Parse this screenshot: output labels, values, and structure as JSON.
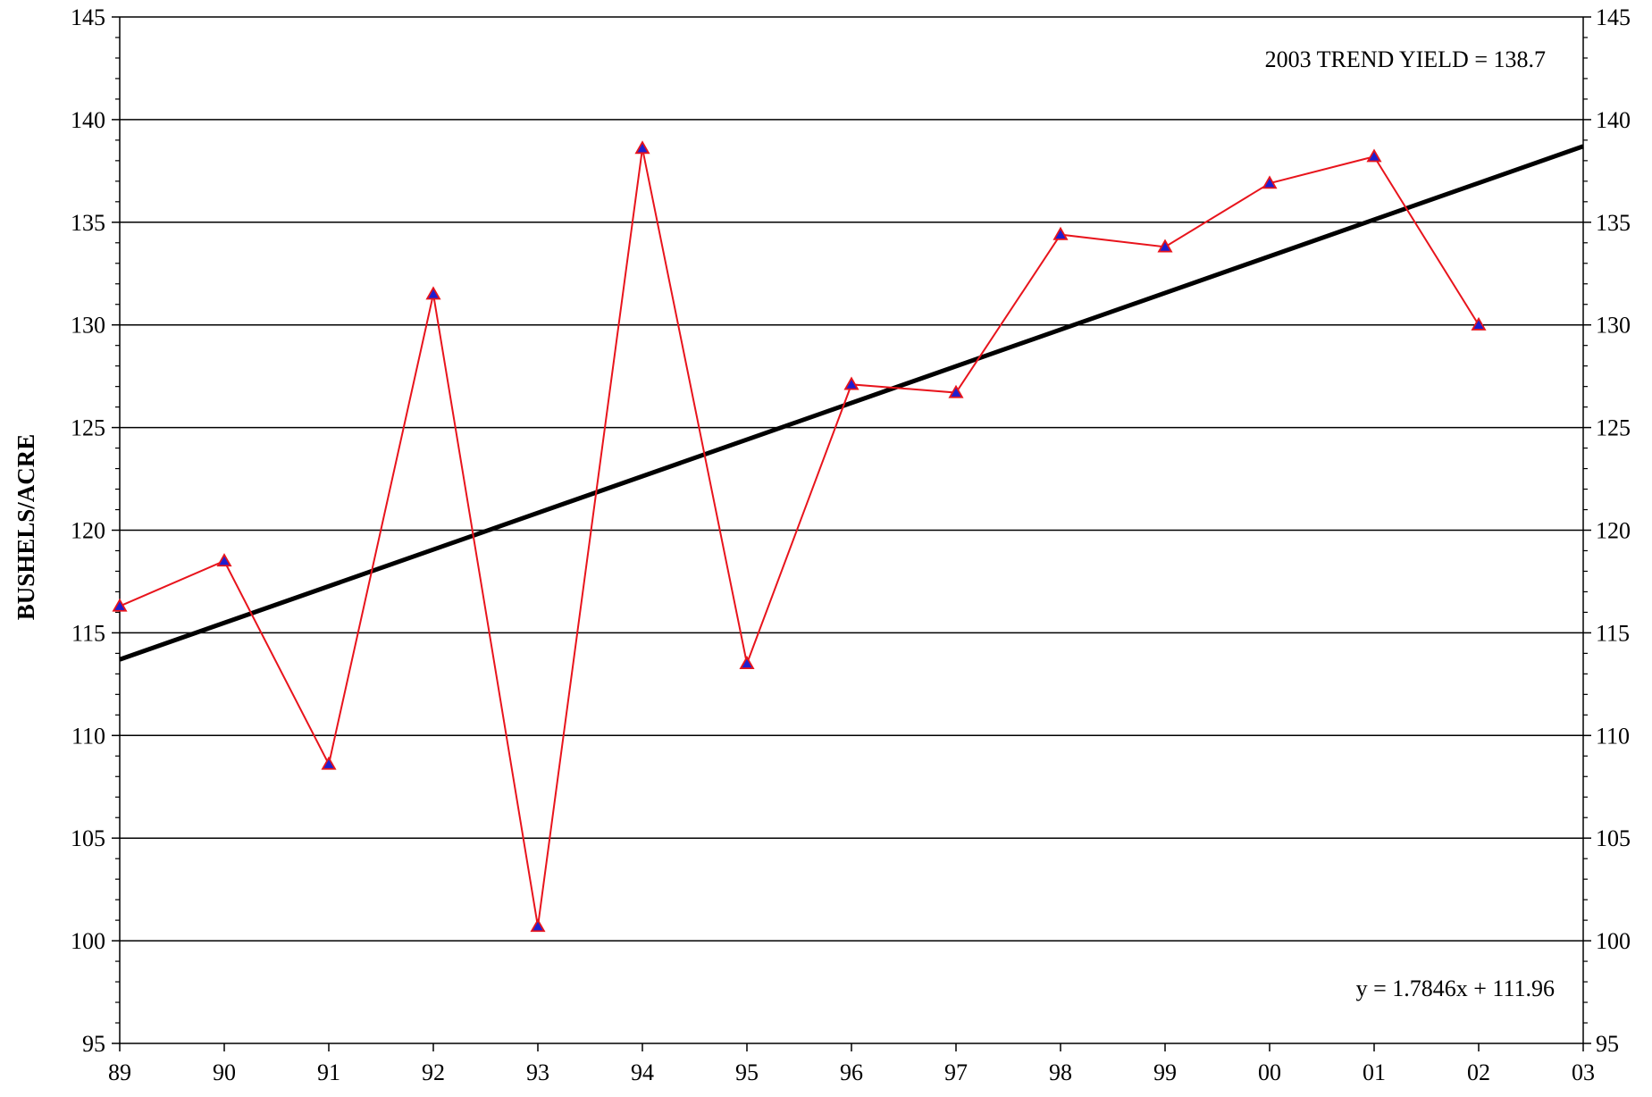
{
  "chart_data": {
    "type": "line",
    "title": "",
    "xlabel": "",
    "ylabel": "BUSHELS/ACRE",
    "x_tick_labels": [
      "89",
      "90",
      "91",
      "92",
      "93",
      "94",
      "95",
      "96",
      "97",
      "98",
      "99",
      "00",
      "01",
      "02",
      "03"
    ],
    "y_tick_labels": [
      "95",
      "100",
      "105",
      "110",
      "115",
      "120",
      "125",
      "130",
      "135",
      "140",
      "145"
    ],
    "ylim": [
      95,
      145
    ],
    "grid": true,
    "right_axis_mirror": true,
    "series": [
      {
        "color": "#e8141c",
        "marker": "triangle",
        "marker_color": "#1f1fd0",
        "x": [
          "89",
          "90",
          "91",
          "92",
          "93",
          "94",
          "95",
          "96",
          "97",
          "98",
          "99",
          "00",
          "01",
          "02"
        ],
        "values": [
          116.3,
          118.5,
          108.6,
          131.5,
          100.7,
          138.6,
          113.5,
          127.1,
          126.7,
          134.4,
          133.8,
          136.9,
          138.2,
          130.0
        ]
      },
      {
        "type": "trendline",
        "color": "#000000",
        "slope": 1.7846,
        "intercept": 111.96,
        "x_start": "89",
        "x_end": "03",
        "y_start": 113.7,
        "y_end": 138.7
      }
    ],
    "annotations": {
      "trend_yield": "2003 TREND YIELD =  138.7",
      "equation": "y = 1.7846x + 111.96"
    }
  }
}
